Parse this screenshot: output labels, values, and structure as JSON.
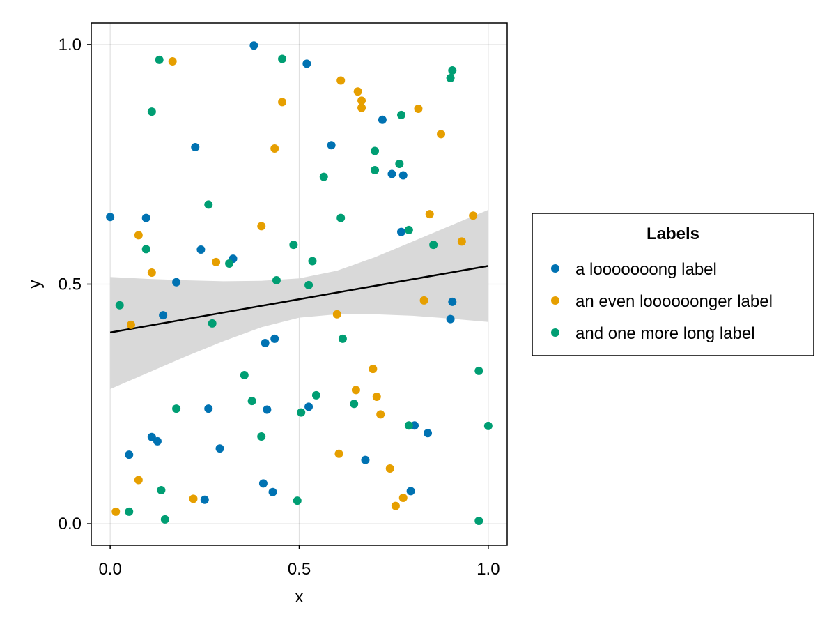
{
  "chart_data": {
    "type": "scatter",
    "title": "",
    "xlabel": "x",
    "ylabel": "y",
    "xlim": [
      -0.05,
      1.05
    ],
    "ylim": [
      -0.045,
      1.045
    ],
    "x_ticks": [
      0.0,
      0.5,
      1.0
    ],
    "x_tick_labels": [
      "0.0",
      "0.5",
      "1.0"
    ],
    "y_ticks": [
      0.0,
      0.5,
      1.0
    ],
    "y_tick_labels": [
      "0.0",
      "0.5",
      "1.0"
    ],
    "grid": true,
    "legend": {
      "title": "Labels",
      "placement": "right"
    },
    "series": [
      {
        "name": "a looooooong label",
        "color": "#0072B2",
        "points": [
          [
            0.0,
            0.64
          ],
          [
            0.095,
            0.638
          ],
          [
            0.225,
            0.786
          ],
          [
            0.38,
            0.998
          ],
          [
            0.52,
            0.96
          ],
          [
            0.585,
            0.79
          ],
          [
            0.72,
            0.843
          ],
          [
            0.745,
            0.73
          ],
          [
            0.775,
            0.727
          ],
          [
            0.77,
            0.609
          ],
          [
            0.24,
            0.572
          ],
          [
            0.325,
            0.553
          ],
          [
            0.175,
            0.504
          ],
          [
            0.14,
            0.435
          ],
          [
            0.41,
            0.377
          ],
          [
            0.435,
            0.386
          ],
          [
            0.905,
            0.463
          ],
          [
            0.9,
            0.427
          ],
          [
            0.26,
            0.24
          ],
          [
            0.415,
            0.238
          ],
          [
            0.525,
            0.244
          ],
          [
            0.11,
            0.181
          ],
          [
            0.125,
            0.172
          ],
          [
            0.05,
            0.144
          ],
          [
            0.29,
            0.157
          ],
          [
            0.405,
            0.084
          ],
          [
            0.43,
            0.066
          ],
          [
            0.25,
            0.05
          ],
          [
            0.675,
            0.133
          ],
          [
            0.84,
            0.189
          ],
          [
            0.805,
            0.205
          ],
          [
            0.795,
            0.068
          ]
        ]
      },
      {
        "name": "an even loooooonger label",
        "color": "#E69F00",
        "points": [
          [
            0.165,
            0.965
          ],
          [
            0.075,
            0.602
          ],
          [
            0.11,
            0.524
          ],
          [
            0.455,
            0.88
          ],
          [
            0.435,
            0.783
          ],
          [
            0.4,
            0.621
          ],
          [
            0.28,
            0.546
          ],
          [
            0.055,
            0.415
          ],
          [
            0.61,
            0.925
          ],
          [
            0.655,
            0.902
          ],
          [
            0.665,
            0.883
          ],
          [
            0.665,
            0.868
          ],
          [
            0.815,
            0.866
          ],
          [
            0.875,
            0.813
          ],
          [
            0.845,
            0.646
          ],
          [
            0.96,
            0.643
          ],
          [
            0.93,
            0.589
          ],
          [
            0.83,
            0.466
          ],
          [
            0.6,
            0.437
          ],
          [
            0.695,
            0.323
          ],
          [
            0.65,
            0.279
          ],
          [
            0.705,
            0.265
          ],
          [
            0.715,
            0.228
          ],
          [
            0.605,
            0.146
          ],
          [
            0.74,
            0.115
          ],
          [
            0.075,
            0.091
          ],
          [
            0.22,
            0.052
          ],
          [
            0.015,
            0.025
          ],
          [
            0.775,
            0.054
          ],
          [
            0.755,
            0.037
          ]
        ]
      },
      {
        "name": "and one more long label",
        "color": "#009E73",
        "points": [
          [
            0.13,
            0.968
          ],
          [
            0.455,
            0.97
          ],
          [
            0.11,
            0.86
          ],
          [
            0.905,
            0.946
          ],
          [
            0.9,
            0.93
          ],
          [
            0.77,
            0.853
          ],
          [
            0.7,
            0.778
          ],
          [
            0.7,
            0.738
          ],
          [
            0.765,
            0.751
          ],
          [
            0.565,
            0.724
          ],
          [
            0.26,
            0.666
          ],
          [
            0.61,
            0.638
          ],
          [
            0.79,
            0.613
          ],
          [
            0.855,
            0.582
          ],
          [
            0.095,
            0.573
          ],
          [
            0.485,
            0.582
          ],
          [
            0.315,
            0.543
          ],
          [
            0.535,
            0.548
          ],
          [
            0.44,
            0.508
          ],
          [
            0.525,
            0.498
          ],
          [
            0.025,
            0.456
          ],
          [
            0.27,
            0.418
          ],
          [
            0.615,
            0.386
          ],
          [
            0.975,
            0.319
          ],
          [
            0.355,
            0.31
          ],
          [
            0.375,
            0.256
          ],
          [
            0.175,
            0.24
          ],
          [
            0.545,
            0.268
          ],
          [
            0.645,
            0.25
          ],
          [
            0.505,
            0.232
          ],
          [
            0.4,
            0.182
          ],
          [
            0.79,
            0.205
          ],
          [
            1.0,
            0.204
          ],
          [
            0.135,
            0.07
          ],
          [
            0.05,
            0.025
          ],
          [
            0.495,
            0.048
          ],
          [
            0.145,
            0.009
          ],
          [
            0.975,
            0.006
          ]
        ]
      }
    ],
    "regression": {
      "color": "#000000",
      "band_color": "#d9d9d9",
      "line": [
        [
          0.0,
          0.399
        ],
        [
          1.0,
          0.538
        ]
      ],
      "band_upper": [
        [
          0.0,
          0.515
        ],
        [
          0.1,
          0.511
        ],
        [
          0.2,
          0.508
        ],
        [
          0.3,
          0.506
        ],
        [
          0.4,
          0.507
        ],
        [
          0.5,
          0.512
        ],
        [
          0.6,
          0.528
        ],
        [
          0.7,
          0.556
        ],
        [
          0.8,
          0.589
        ],
        [
          0.9,
          0.622
        ],
        [
          1.0,
          0.655
        ]
      ],
      "band_lower": [
        [
          0.0,
          0.281
        ],
        [
          0.1,
          0.315
        ],
        [
          0.2,
          0.349
        ],
        [
          0.3,
          0.381
        ],
        [
          0.4,
          0.41
        ],
        [
          0.5,
          0.43
        ],
        [
          0.6,
          0.437
        ],
        [
          0.7,
          0.437
        ],
        [
          0.8,
          0.434
        ],
        [
          0.9,
          0.428
        ],
        [
          1.0,
          0.421
        ]
      ]
    }
  }
}
